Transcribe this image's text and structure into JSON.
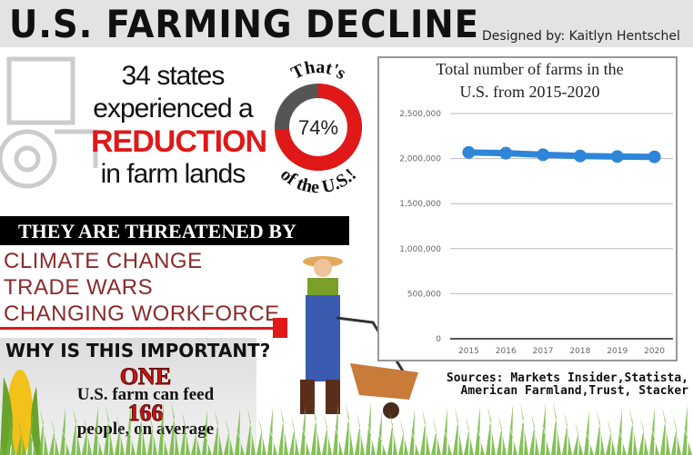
{
  "header": {
    "title": "U.S. FARMING DECLINE",
    "designer": "Designed by: Kaitlyn Hentschel"
  },
  "stat": {
    "line1": "34 states",
    "line2": "experienced a",
    "line3": "REDUCTION",
    "line4": "in farm lands"
  },
  "donut": {
    "top_text": "That's",
    "percent_label": "74%",
    "percent": 74,
    "bottom_text": "of the U.S.!",
    "fill_color": "#e01818",
    "rest_color": "#555555"
  },
  "threats": {
    "heading": "THEY ARE THREATENED BY",
    "items": [
      "CLIMATE CHANGE",
      "TRADE WARS",
      "CHANGING WORKFORCE"
    ]
  },
  "importance": {
    "heading": "WHY IS THIS IMPORTANT?",
    "one": "ONE",
    "line2": "U.S. farm can feed",
    "number": "166",
    "line4": "people, on average"
  },
  "sources": {
    "line1": "Sources: Markets Insider,Statista,",
    "line2": "American Farmland,Trust, Stacker"
  },
  "chart_data": {
    "type": "line",
    "title": "Total number of farms in the U.S. from 2015-2020",
    "title_lines": [
      "Total number of farms in the",
      "U.S. from 2015-2020"
    ],
    "categories": [
      "2015",
      "2016",
      "2017",
      "2018",
      "2019",
      "2020"
    ],
    "values": [
      2068000,
      2060000,
      2042000,
      2029000,
      2023000,
      2019000
    ],
    "ylim": [
      0,
      2500000
    ],
    "yticks": [
      0,
      500000,
      1000000,
      1500000,
      2000000,
      2500000
    ],
    "ytick_labels": [
      "0",
      "500,000",
      "1,000,000",
      "1,500,000",
      "2,000,000",
      "2,500,000"
    ],
    "grid": true,
    "color": "#2e86d8"
  }
}
